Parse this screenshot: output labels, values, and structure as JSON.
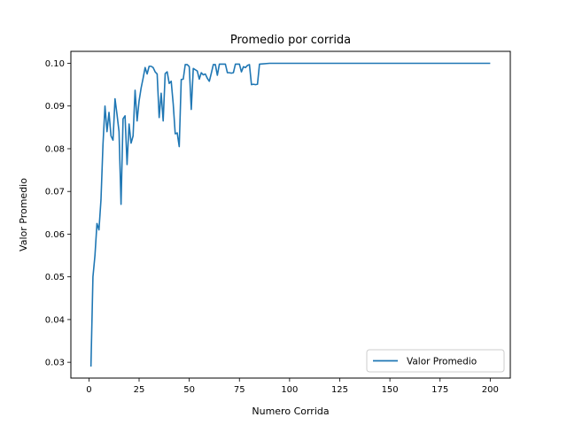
{
  "chart_data": {
    "type": "line",
    "title": "Promedio por corrida",
    "xlabel": "Numero Corrida",
    "ylabel": "Valor Promedio",
    "xlim": [
      -9,
      210
    ],
    "ylim": [
      0.0263,
      0.1028
    ],
    "xticks": [
      0,
      25,
      50,
      75,
      100,
      125,
      150,
      175,
      200
    ],
    "yticks": [
      0.03,
      0.04,
      0.05,
      0.06,
      0.07,
      0.08,
      0.09,
      0.1
    ],
    "ytick_labels": [
      "0.03",
      "0.04",
      "0.05",
      "0.06",
      "0.07",
      "0.08",
      "0.09",
      "0.10"
    ],
    "grid": false,
    "legend_position": "lower-right",
    "series": [
      {
        "name": "Valor Promedio",
        "color": "#1f77b4",
        "x": [
          1,
          2,
          3,
          4,
          5,
          6,
          7,
          8,
          9,
          10,
          11,
          12,
          13,
          14,
          15,
          16,
          17,
          18,
          19,
          20,
          21,
          22,
          23,
          24,
          25,
          26,
          27,
          28,
          29,
          30,
          31,
          32,
          33,
          34,
          35,
          36,
          37,
          38,
          39,
          40,
          41,
          42,
          43,
          44,
          45,
          46,
          47,
          48,
          49,
          50,
          51,
          52,
          53,
          54,
          55,
          56,
          57,
          58,
          59,
          60,
          61,
          62,
          63,
          64,
          65,
          66,
          67,
          68,
          69,
          70,
          71,
          72,
          73,
          74,
          75,
          76,
          77,
          78,
          79,
          80,
          81,
          82,
          83,
          84,
          85,
          90,
          100,
          150,
          200
        ],
        "y": [
          0.029,
          0.05,
          0.055,
          0.0625,
          0.061,
          0.068,
          0.081,
          0.09,
          0.084,
          0.0885,
          0.083,
          0.082,
          0.0917,
          0.088,
          0.084,
          0.067,
          0.087,
          0.0877,
          0.0763,
          0.0858,
          0.0813,
          0.083,
          0.0937,
          0.0865,
          0.0912,
          0.0942,
          0.0965,
          0.099,
          0.0975,
          0.0993,
          0.0993,
          0.099,
          0.098,
          0.0975,
          0.0873,
          0.093,
          0.0865,
          0.0976,
          0.098,
          0.0953,
          0.0958,
          0.0905,
          0.0835,
          0.0837,
          0.0805,
          0.0962,
          0.0963,
          0.0997,
          0.0997,
          0.0992,
          0.0892,
          0.0988,
          0.0985,
          0.0982,
          0.0963,
          0.0978,
          0.0973,
          0.0975,
          0.0965,
          0.0958,
          0.0977,
          0.0997,
          0.0997,
          0.0972,
          0.0998,
          0.0998,
          0.0998,
          0.0998,
          0.0978,
          0.0978,
          0.0977,
          0.0978,
          0.0998,
          0.0998,
          0.0998,
          0.098,
          0.0992,
          0.099,
          0.0995,
          0.0997,
          0.095,
          0.0951,
          0.095,
          0.0951,
          0.0998,
          0.1,
          0.1,
          0.1,
          0.1
        ]
      }
    ]
  }
}
